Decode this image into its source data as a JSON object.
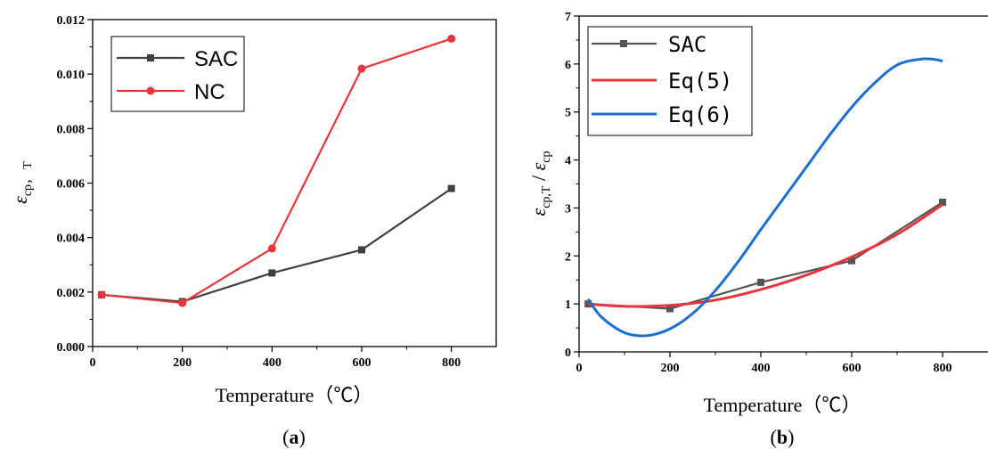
{
  "chart_data": [
    {
      "type": "line",
      "panel_label_parts": [
        "(",
        "a",
        ")"
      ],
      "xlabel": "Temperature（℃）",
      "ylabel": "ε",
      "ylabel_sub": "cp， T",
      "xlim": [
        0,
        900
      ],
      "ylim": [
        0,
        0.012
      ],
      "xticks": [
        "0",
        "200",
        "400",
        "600",
        "800"
      ],
      "yticks": [
        "0.000",
        "0.002",
        "0.004",
        "0.006",
        "0.008",
        "0.010",
        "0.012"
      ],
      "legend_position": "top-left",
      "series": [
        {
          "name": "SAC",
          "color": "#404040",
          "marker": "square",
          "x": [
            20,
            200,
            400,
            600,
            800
          ],
          "y": [
            0.0019,
            0.00165,
            0.0027,
            0.00355,
            0.0058
          ]
        },
        {
          "name": "NC",
          "color": "#e8343a",
          "marker": "circle",
          "x": [
            20,
            200,
            400,
            600,
            800
          ],
          "y": [
            0.0019,
            0.0016,
            0.0036,
            0.0102,
            0.0113
          ]
        }
      ]
    },
    {
      "type": "line",
      "panel_label_parts": [
        "(",
        "b",
        ")"
      ],
      "xlabel": "Temperature（℃）",
      "ylabel": "ε",
      "ylabel_sub1": "cp,T",
      "ylabel_sep": " / ",
      "ylabel2": "ε",
      "ylabel_sub2": "cp",
      "xlim": [
        0,
        900
      ],
      "ylim": [
        0,
        7
      ],
      "xticks": [
        "0",
        "200",
        "400",
        "600",
        "800"
      ],
      "yticks": [
        "0",
        "1",
        "2",
        "3",
        "4",
        "5",
        "6",
        "7"
      ],
      "legend_position": "top-left",
      "series": [
        {
          "name": "SAC",
          "color": "#555555",
          "marker": "square",
          "x": [
            20,
            200,
            400,
            600,
            800
          ],
          "y": [
            1.0,
            0.9,
            1.45,
            1.9,
            3.12
          ]
        },
        {
          "name": "Eq(5)",
          "color": "#e8343a",
          "marker": "none",
          "x": [
            20,
            100,
            200,
            300,
            400,
            500,
            600,
            700,
            800
          ],
          "y": [
            1.0,
            0.95,
            0.97,
            1.08,
            1.3,
            1.6,
            1.98,
            2.45,
            3.07
          ]
        },
        {
          "name": "Eq(6)",
          "color": "#1a6fd4",
          "marker": "none",
          "x": [
            20,
            50,
            100,
            150,
            200,
            250,
            300,
            350,
            400,
            450,
            500,
            550,
            600,
            650,
            700,
            750,
            780,
            800
          ],
          "y": [
            1.1,
            0.72,
            0.4,
            0.34,
            0.48,
            0.8,
            1.28,
            1.88,
            2.55,
            3.2,
            3.85,
            4.5,
            5.1,
            5.6,
            5.98,
            6.1,
            6.1,
            6.06
          ]
        }
      ]
    }
  ]
}
